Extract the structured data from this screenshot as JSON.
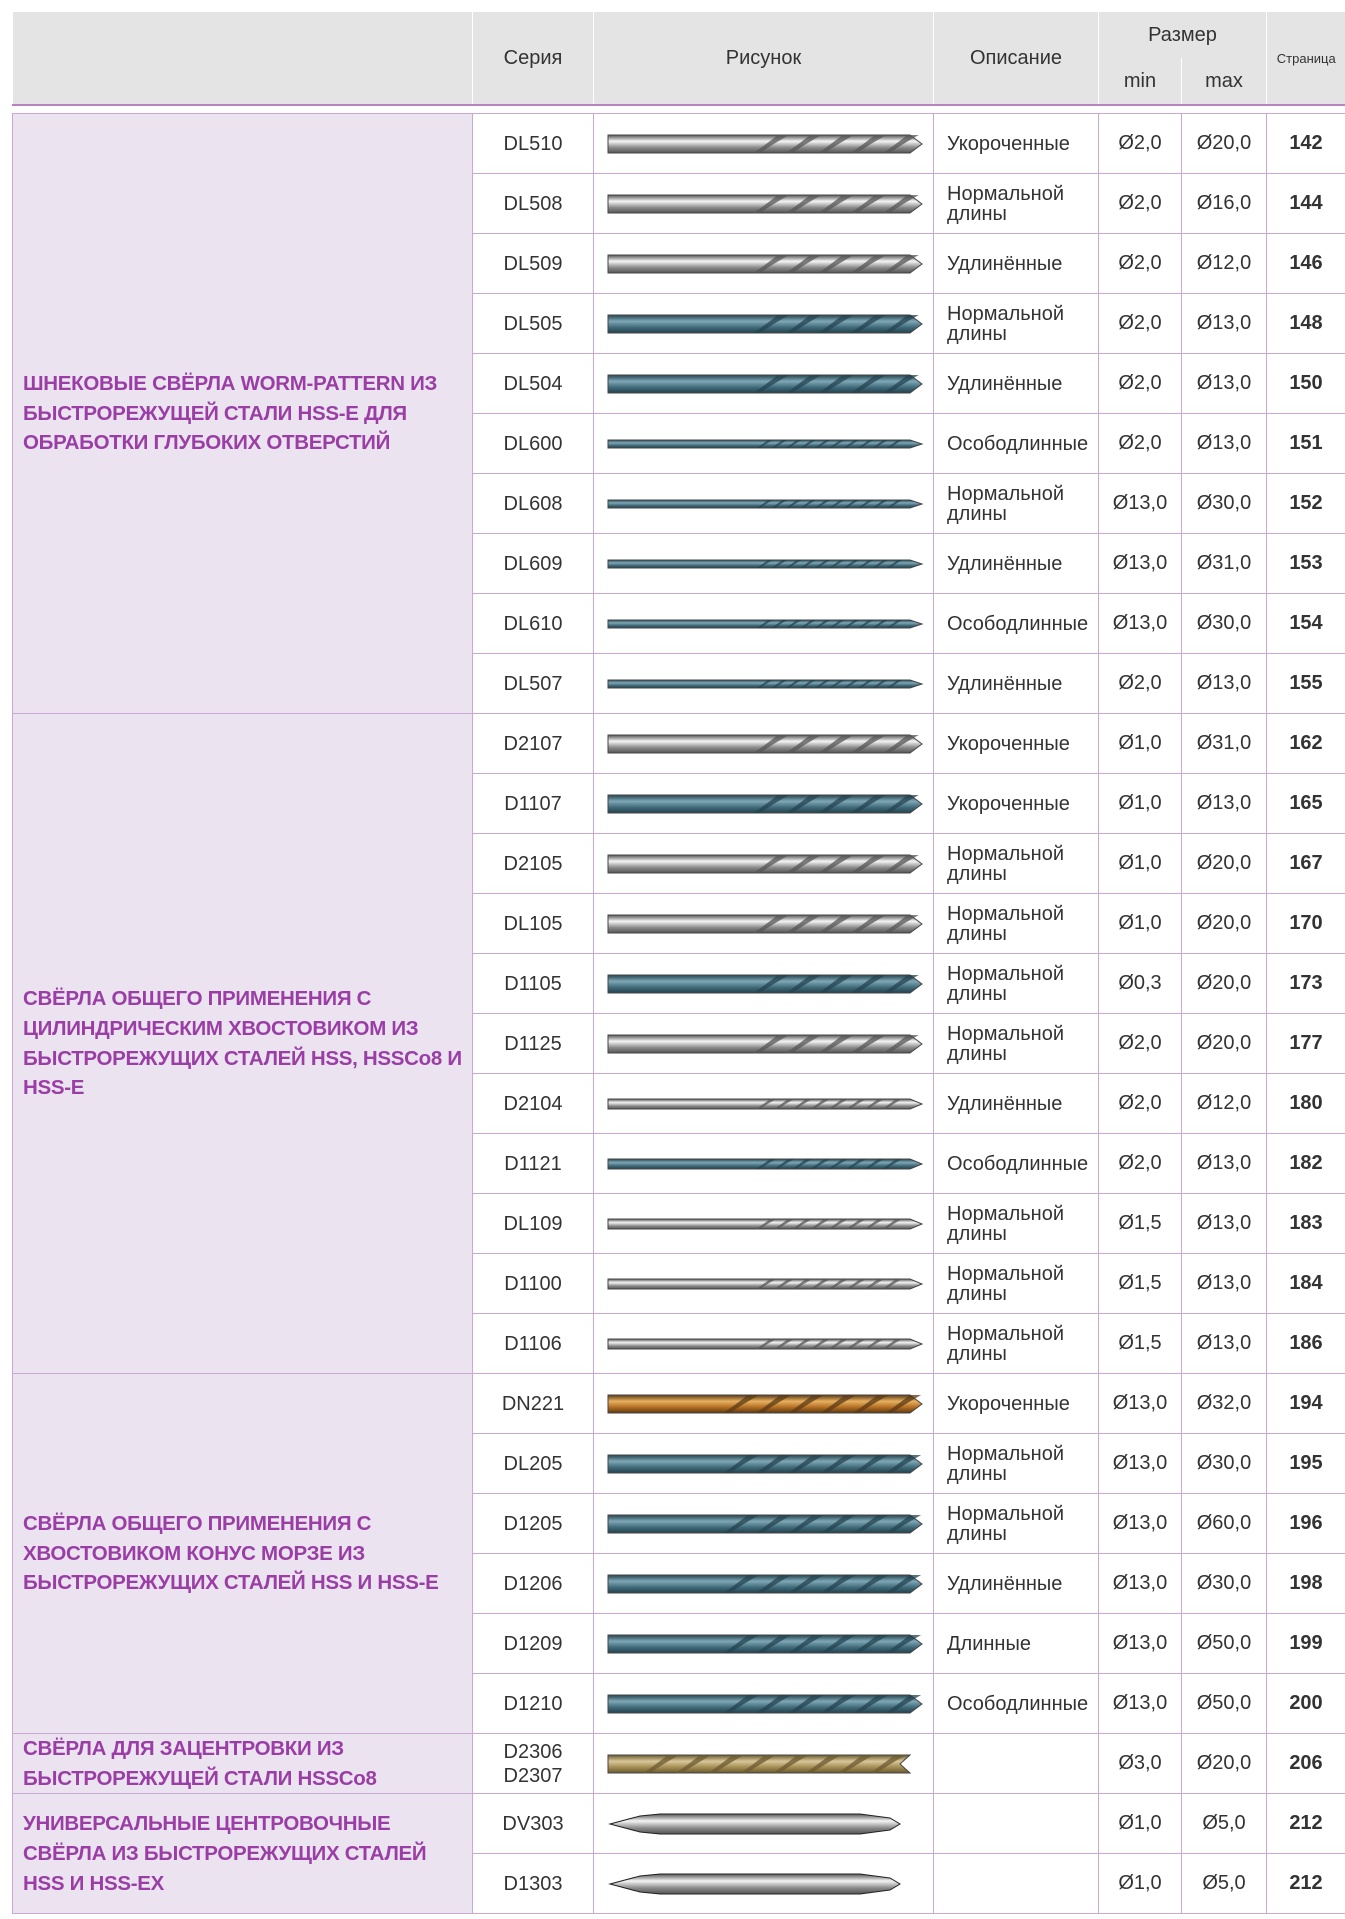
{
  "header": {
    "category": "",
    "series": "Серия",
    "picture": "Рисунок",
    "description": "Описание",
    "size": "Размер",
    "min": "min",
    "max": "max",
    "page": "Страница"
  },
  "groups": [
    {
      "title": "ШНЕКОВЫЕ СВЁРЛА WORM-PATTERN ИЗ БЫСТРОРЕЖУЩЕЙ СТАЛИ HSS-E ДЛЯ ОБРАБОТКИ ГЛУБОКИХ ОТВЕРСТИЙ",
      "rows": [
        {
          "series": "DL510",
          "description": "Укороченные",
          "min": "Ø2,0",
          "max": "Ø20,0",
          "page": "142"
        },
        {
          "series": "DL508",
          "description": "Нормальной длины",
          "min": "Ø2,0",
          "max": "Ø16,0",
          "page": "144"
        },
        {
          "series": "DL509",
          "description": "Удлинённые",
          "min": "Ø2,0",
          "max": "Ø12,0",
          "page": "146"
        },
        {
          "series": "DL505",
          "description": "Нормальной длины",
          "min": "Ø2,0",
          "max": "Ø13,0",
          "page": "148"
        },
        {
          "series": "DL504",
          "description": "Удлинённые",
          "min": "Ø2,0",
          "max": "Ø13,0",
          "page": "150"
        },
        {
          "series": "DL600",
          "description": "Осободлинные",
          "min": "Ø2,0",
          "max": "Ø13,0",
          "page": "151"
        },
        {
          "series": "DL608",
          "description": "Нормальной длины",
          "min": "Ø13,0",
          "max": "Ø30,0",
          "page": "152"
        },
        {
          "series": "DL609",
          "description": "Удлинённые",
          "min": "Ø13,0",
          "max": "Ø31,0",
          "page": "153"
        },
        {
          "series": "DL610",
          "description": "Осободлинные",
          "min": "Ø13,0",
          "max": "Ø30,0",
          "page": "154"
        },
        {
          "series": "DL507",
          "description": "Удлинённые",
          "min": "Ø2,0",
          "max": "Ø13,0",
          "page": "155"
        }
      ]
    },
    {
      "title": "СВЁРЛА ОБЩЕГО ПРИМЕНЕНИЯ С ЦИЛИНДРИЧЕСКИМ ХВОСТОВИКОМ ИЗ БЫСТРОРЕЖУЩИХ СТАЛЕЙ HSS, HSSCo8 И HSS-E",
      "rows": [
        {
          "series": "D2107",
          "description": "Укороченные",
          "min": "Ø1,0",
          "max": "Ø31,0",
          "page": "162"
        },
        {
          "series": "D1107",
          "description": "Укороченные",
          "min": "Ø1,0",
          "max": "Ø13,0",
          "page": "165"
        },
        {
          "series": "D2105",
          "description": "Нормальной длины",
          "min": "Ø1,0",
          "max": "Ø20,0",
          "page": "167"
        },
        {
          "series": "DL105",
          "description": "Нормальной длины",
          "min": "Ø1,0",
          "max": "Ø20,0",
          "page": "170"
        },
        {
          "series": "D1105",
          "description": "Нормальной длины",
          "min": "Ø0,3",
          "max": "Ø20,0",
          "page": "173"
        },
        {
          "series": "D1125",
          "description": "Нормальной длины",
          "min": "Ø2,0",
          "max": "Ø20,0",
          "page": "177"
        },
        {
          "series": "D2104",
          "description": "Удлинённые",
          "min": "Ø2,0",
          "max": "Ø12,0",
          "page": "180"
        },
        {
          "series": "D1121",
          "description": "Осободлинные",
          "min": "Ø2,0",
          "max": "Ø13,0",
          "page": "182"
        },
        {
          "series": "DL109",
          "description": "Нормальной длины",
          "min": "Ø1,5",
          "max": "Ø13,0",
          "page": "183"
        },
        {
          "series": "D1100",
          "description": "Нормальной длины",
          "min": "Ø1,5",
          "max": "Ø13,0",
          "page": "184"
        },
        {
          "series": "D1106",
          "description": "Нормальной длины",
          "min": "Ø1,5",
          "max": "Ø13,0",
          "page": "186"
        }
      ]
    },
    {
      "title": "СВЁРЛА ОБЩЕГО ПРИМЕНЕНИЯ С ХВОСТОВИКОМ КОНУС МОРЗЕ ИЗ БЫСТРОРЕЖУЩИХ СТАЛЕЙ HSS И HSS-E",
      "rows": [
        {
          "series": "DN221",
          "description": "Укороченные",
          "min": "Ø13,0",
          "max": "Ø32,0",
          "page": "194"
        },
        {
          "series": "DL205",
          "description": "Нормальной длины",
          "min": "Ø13,0",
          "max": "Ø30,0",
          "page": "195"
        },
        {
          "series": "D1205",
          "description": "Нормальной длины",
          "min": "Ø13,0",
          "max": "Ø60,0",
          "page": "196"
        },
        {
          "series": "D1206",
          "description": "Удлинённые",
          "min": "Ø13,0",
          "max": "Ø30,0",
          "page": "198"
        },
        {
          "series": "D1209",
          "description": "Длинные",
          "min": "Ø13,0",
          "max": "Ø50,0",
          "page": "199"
        },
        {
          "series": "D1210",
          "description": "Осободлинные",
          "min": "Ø13,0",
          "max": "Ø50,0",
          "page": "200"
        }
      ]
    },
    {
      "title": "СВЁРЛА ДЛЯ ЗАЦЕНТРОВКИ ИЗ БЫСТРОРЕЖУЩЕЙ СТАЛИ HSSCo8",
      "rows": [
        {
          "series": [
            "D2306",
            "D2307"
          ],
          "min": "Ø3,0",
          "max": "Ø20,0",
          "page": "206"
        }
      ]
    },
    {
      "title": "УНИВЕРСАЛЬНЫЕ ЦЕНТРОВОЧНЫЕ СВЁРЛА ИЗ БЫСТРОРЕЖУЩИХ СТАЛЕЙ HSS И HSS-EX",
      "rows": [
        {
          "series": "DV303",
          "min": "Ø1,0",
          "max": "Ø5,0",
          "page": "212"
        },
        {
          "series": "D1303",
          "min": "Ø1,0",
          "max": "Ø5,0",
          "page": "212"
        }
      ]
    }
  ]
}
